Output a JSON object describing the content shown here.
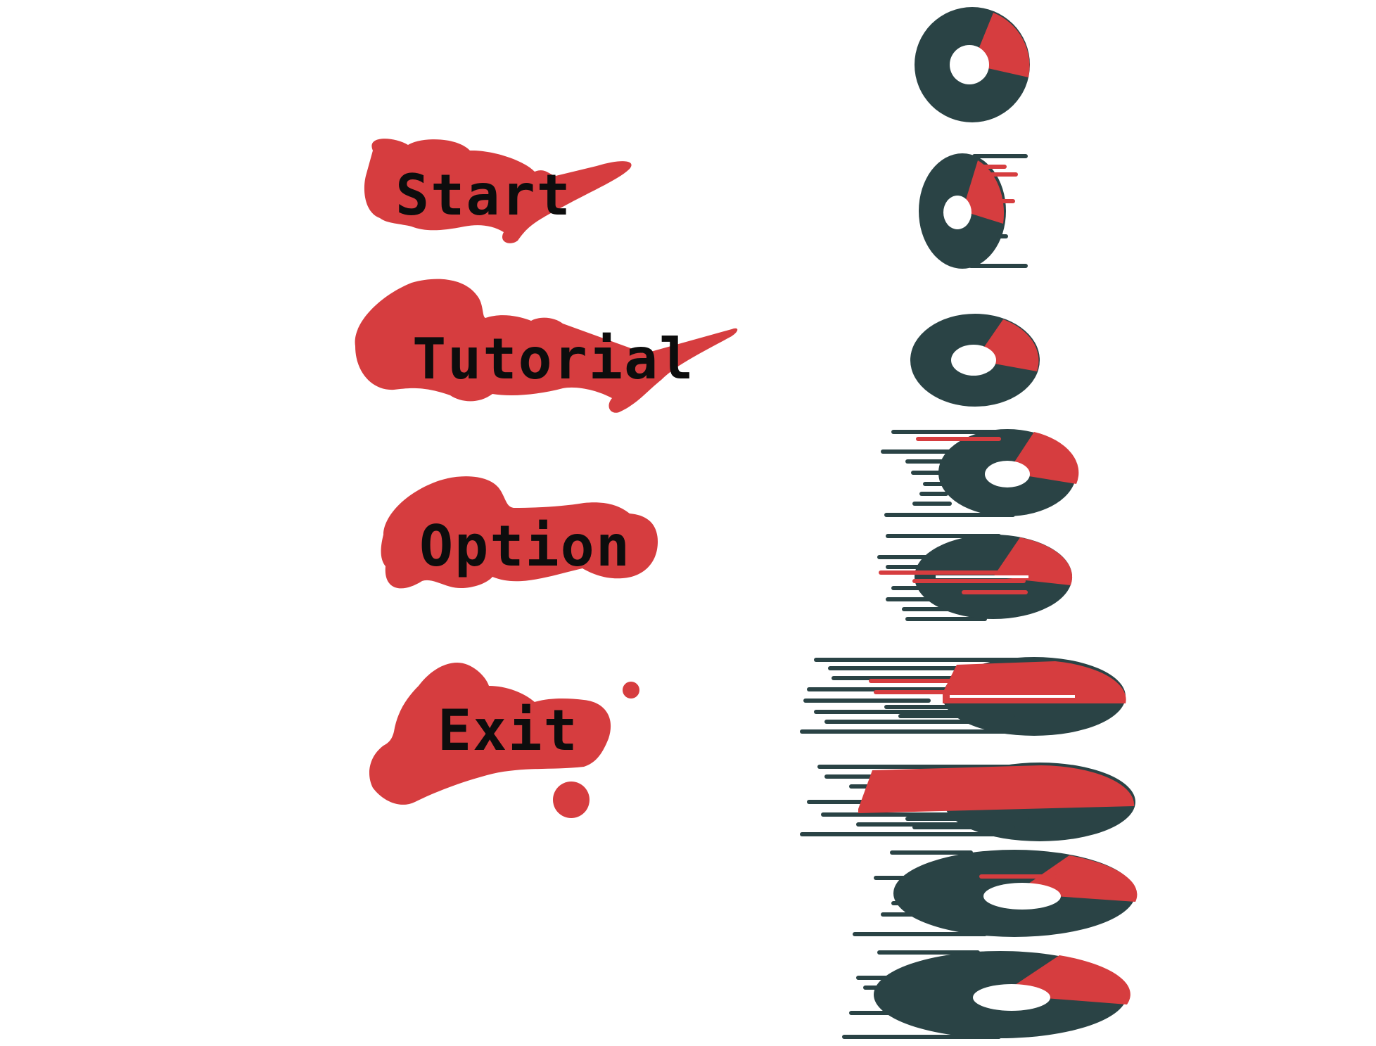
{
  "menu": {
    "items": [
      {
        "id": "start",
        "label": "Start"
      },
      {
        "id": "tutorial",
        "label": "Tutorial"
      },
      {
        "id": "option",
        "label": "Option"
      },
      {
        "id": "exit",
        "label": "Exit"
      }
    ]
  },
  "colors": {
    "accent_red": "#d63d3f",
    "disc_dark": "#2a4345",
    "text": "#0d0d0d",
    "background": "#ffffff"
  },
  "sprite_sheet": {
    "description_icon": "spinning-disc-icon",
    "frames": 9
  }
}
